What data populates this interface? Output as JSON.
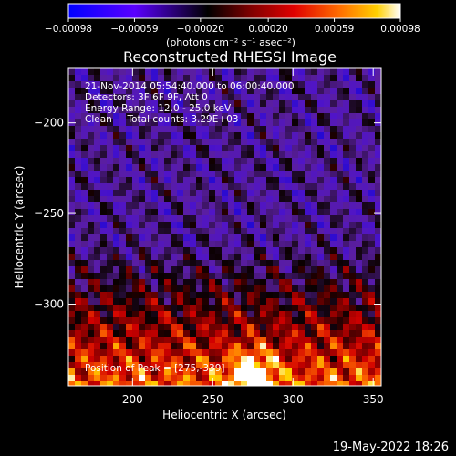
{
  "chart_data": {
    "type": "heatmap",
    "title": "Reconstructed RHESSI Image",
    "xlabel": "Heliocentric X (arcsec)",
    "ylabel": "Heliocentric Y (arcsec)",
    "xlim": [
      160,
      355
    ],
    "ylim": [
      -345,
      -170
    ],
    "x_ticks": [
      200,
      250,
      300,
      350
    ],
    "x_tick_labels": [
      "200",
      "250",
      "300",
      "350"
    ],
    "y_ticks": [
      -200,
      -250,
      -300
    ],
    "y_tick_labels": [
      "−200",
      "−250",
      "−300"
    ],
    "colorbar": {
      "range": [
        -0.00098,
        0.00098
      ],
      "ticks": [
        -0.00098,
        -0.00059,
        -0.0002,
        0.0002,
        0.00059,
        0.00098
      ],
      "tick_labels": [
        "−0.00098",
        "−0.00059",
        "−0.00020",
        "0.00020",
        "0.00059",
        "0.00098"
      ],
      "label": "(photons cm⁻² s⁻¹ asec⁻²)"
    },
    "annotations": [
      "21-Nov-2014 05:54:40.000 to 06:00:40.000",
      "Detectors: 3F 6F 9F, Att 0",
      "Energy Range: 12.0 - 25.0 keV",
      "Clean     Total counts: 3.29E+03"
    ],
    "peak_label": "Position of Peak = [275,-339]",
    "peak": [
      275,
      -339
    ],
    "colormap_stops": [
      "#0000ff",
      "#6a00ff",
      "#000000",
      "#7a0000",
      "#d00000",
      "#ff6a00",
      "#ffd000",
      "#ffffff"
    ]
  },
  "footer": {
    "date": "19-May-2022 18:26"
  }
}
